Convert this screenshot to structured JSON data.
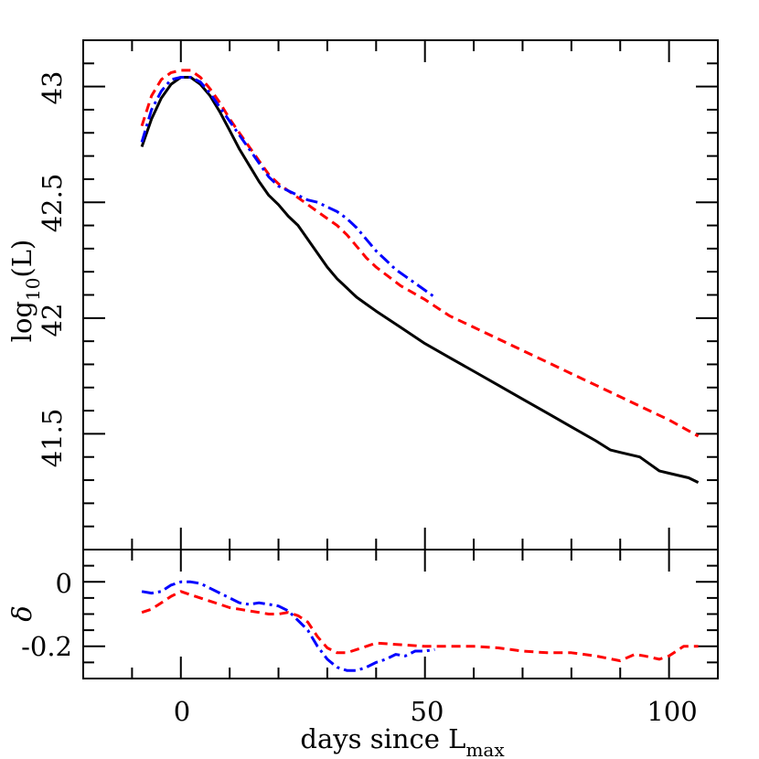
{
  "chart_data": {
    "type": "line",
    "xlabel": "days since L",
    "xlabel_sub": "max",
    "xlim": [
      -20,
      110
    ],
    "xticks": [
      "0",
      "50",
      "100"
    ],
    "xtick_values": [
      0,
      50,
      100
    ],
    "panels": [
      {
        "id": "top",
        "ylabel_main": "log",
        "ylabel_sub": "10",
        "ylabel_tail": "(L)",
        "ylim": [
          41.0,
          43.2
        ],
        "yticks": [
          "41.5",
          "42",
          "42.5",
          "43"
        ],
        "ytick_values": [
          41.5,
          42.0,
          42.5,
          43.0
        ],
        "series": [
          {
            "color": "#000000",
            "dash": "solid",
            "x": [
              -8,
              -6,
              -4,
              -2,
              0,
              2,
              4,
              6,
              8,
              10,
              12,
              14,
              16,
              18,
              20,
              22,
              24,
              26,
              28,
              30,
              32,
              34,
              36,
              38,
              40,
              45,
              50,
              55,
              60,
              65,
              70,
              75,
              80,
              85,
              88,
              90,
              94,
              96,
              98,
              100,
              104,
              106
            ],
            "y": [
              42.74,
              42.86,
              42.95,
              43.01,
              43.04,
              43.04,
              43.01,
              42.96,
              42.89,
              42.81,
              42.73,
              42.66,
              42.59,
              42.53,
              42.49,
              42.44,
              42.4,
              42.34,
              42.28,
              42.22,
              42.17,
              42.13,
              42.09,
              42.06,
              42.03,
              41.96,
              41.89,
              41.83,
              41.77,
              41.71,
              41.65,
              41.59,
              41.53,
              41.47,
              41.43,
              41.42,
              41.4,
              41.37,
              41.34,
              41.33,
              41.31,
              41.29
            ]
          },
          {
            "color": "#ff0000",
            "dash": "dashed",
            "x": [
              -8,
              -6,
              -4,
              -2,
              0,
              2,
              4,
              6,
              8,
              10,
              12,
              14,
              16,
              18,
              20,
              22,
              24,
              26,
              28,
              30,
              32,
              34,
              36,
              38,
              40,
              45,
              50,
              55,
              60,
              65,
              70,
              75,
              80,
              85,
              90,
              95,
              100,
              106
            ],
            "y": [
              42.83,
              42.96,
              43.03,
              43.06,
              43.07,
              43.07,
              43.04,
              42.99,
              42.93,
              42.86,
              42.8,
              42.74,
              42.68,
              42.62,
              42.58,
              42.55,
              42.52,
              42.49,
              42.46,
              42.43,
              42.4,
              42.36,
              42.31,
              42.26,
              42.22,
              42.14,
              42.08,
              42.01,
              41.96,
              41.91,
              41.86,
              41.81,
              41.76,
              41.71,
              41.66,
              41.61,
              41.56,
              41.49
            ]
          },
          {
            "color": "#0000ff",
            "dash": "dashdot",
            "x": [
              -8,
              -6,
              -4,
              -2,
              0,
              2,
              4,
              6,
              8,
              10,
              12,
              14,
              16,
              18,
              20,
              22,
              24,
              26,
              28,
              30,
              32,
              34,
              36,
              38,
              40,
              42,
              44,
              46,
              48,
              50,
              52
            ],
            "y": [
              42.76,
              42.9,
              42.98,
              43.03,
              43.04,
              43.04,
              43.02,
              42.97,
              42.91,
              42.85,
              42.79,
              42.73,
              42.67,
              42.61,
              42.57,
              42.55,
              42.53,
              42.51,
              42.5,
              42.48,
              42.46,
              42.43,
              42.39,
              42.34,
              42.29,
              42.25,
              42.21,
              42.18,
              42.15,
              42.12,
              42.09
            ]
          }
        ]
      },
      {
        "id": "bottom",
        "ylabel": "δ",
        "ylim": [
          -0.3,
          0.1
        ],
        "yticks": [
          "0",
          "-0.2"
        ],
        "ytick_values": [
          0,
          -0.2
        ],
        "series": [
          {
            "color": "#0000ff",
            "dash": "dashdot",
            "x": [
              -8,
              -6,
              -4,
              -2,
              0,
              2,
              4,
              6,
              8,
              10,
              12,
              14,
              16,
              18,
              20,
              22,
              24,
              26,
              28,
              30,
              32,
              34,
              36,
              38,
              40,
              42,
              44,
              46,
              48,
              50,
              52
            ],
            "y": [
              -0.03,
              -0.035,
              -0.03,
              -0.01,
              0.0,
              0.0,
              -0.005,
              -0.02,
              -0.035,
              -0.05,
              -0.065,
              -0.07,
              -0.065,
              -0.07,
              -0.075,
              -0.09,
              -0.12,
              -0.15,
              -0.2,
              -0.24,
              -0.265,
              -0.275,
              -0.275,
              -0.265,
              -0.25,
              -0.24,
              -0.225,
              -0.23,
              -0.215,
              -0.215,
              -0.21
            ]
          },
          {
            "color": "#ff0000",
            "dash": "dashed",
            "x": [
              -8,
              -6,
              -4,
              -2,
              0,
              2,
              4,
              6,
              8,
              10,
              12,
              14,
              16,
              18,
              20,
              22,
              24,
              26,
              28,
              30,
              32,
              34,
              36,
              38,
              40,
              45,
              50,
              55,
              60,
              65,
              70,
              75,
              80,
              85,
              90,
              93,
              95,
              98,
              100,
              103,
              106
            ],
            "y": [
              -0.095,
              -0.085,
              -0.065,
              -0.045,
              -0.03,
              -0.04,
              -0.05,
              -0.06,
              -0.07,
              -0.08,
              -0.085,
              -0.09,
              -0.095,
              -0.1,
              -0.1,
              -0.095,
              -0.105,
              -0.125,
              -0.17,
              -0.205,
              -0.22,
              -0.22,
              -0.21,
              -0.2,
              -0.19,
              -0.195,
              -0.2,
              -0.2,
              -0.2,
              -0.205,
              -0.215,
              -0.22,
              -0.22,
              -0.23,
              -0.245,
              -0.225,
              -0.23,
              -0.24,
              -0.23,
              -0.2,
              -0.2
            ]
          }
        ]
      }
    ]
  }
}
